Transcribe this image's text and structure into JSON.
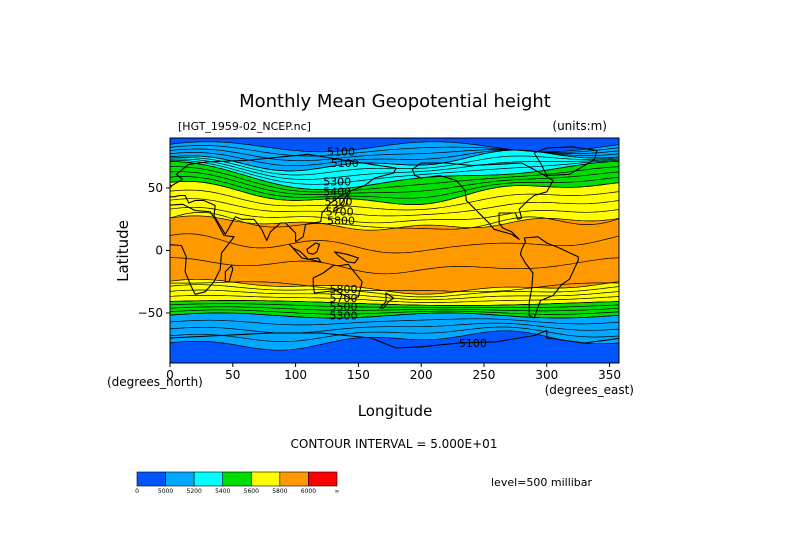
{
  "chart_data": {
    "type": "heatmap",
    "title": "Monthly Mean Geopotential height",
    "file_label": "[HGT_1959-02_NCEP.nc]",
    "units_label": "(units:m)",
    "xlabel": "Longitude",
    "ylabel": "Latitude",
    "x_unit_label": "(degrees_east)",
    "y_unit_label": "(degrees_north)",
    "xlim": [
      0,
      357.5
    ],
    "ylim": [
      -90,
      90
    ],
    "xticks": [
      0,
      50,
      100,
      150,
      200,
      250,
      300,
      350
    ],
    "yticks": [
      -50,
      0,
      50
    ],
    "contour_interval_label": "CONTOUR INTERVAL = 5.000E+01",
    "level_label": "level=500 millibar",
    "contour_interval": 50,
    "contour_labels": [
      {
        "text": "5100",
        "lon": 125,
        "lat": 76
      },
      {
        "text": "5100",
        "lon": 128,
        "lat": 67
      },
      {
        "text": "5300",
        "lon": 122,
        "lat": 52
      },
      {
        "text": "5400",
        "lon": 122,
        "lat": 44
      },
      {
        "text": "5500",
        "lon": 123,
        "lat": 36
      },
      {
        "text": "5700",
        "lon": 124,
        "lat": 28
      },
      {
        "text": "5800",
        "lon": 125,
        "lat": 21
      },
      {
        "text": "5800",
        "lon": 127,
        "lat": -34
      },
      {
        "text": "5700",
        "lon": 127,
        "lat": -41
      },
      {
        "text": "5500",
        "lon": 127,
        "lat": -48
      },
      {
        "text": "5300",
        "lon": 127,
        "lat": -55
      },
      {
        "text": "5100",
        "lon": 230,
        "lat": -77
      }
    ],
    "colorbar": {
      "bins": [
        {
          "color": "#0055ff"
        },
        {
          "color": "#00a8ff"
        },
        {
          "color": "#00ffff"
        },
        {
          "color": "#00dd00"
        },
        {
          "color": "#ffff00"
        },
        {
          "color": "#ff9900"
        },
        {
          "color": "#ff0000"
        }
      ],
      "labels": [
        "0",
        "5000",
        "5200",
        "5400",
        "5600",
        "5800",
        "6000",
        "∞"
      ]
    }
  }
}
